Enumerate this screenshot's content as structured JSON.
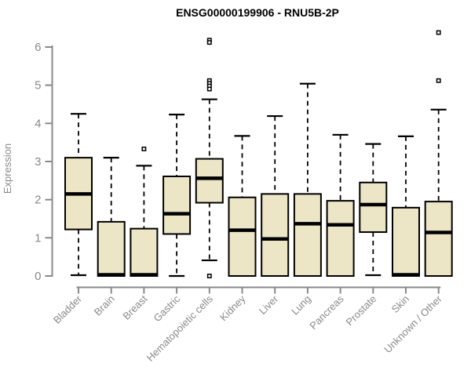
{
  "title": "ENSG00000199906 - RNU5B-2P",
  "chart_data": {
    "type": "boxplot",
    "title": "ENSG00000199906 - RNU5B-2P",
    "ylabel": "Expression",
    "ylim": [
      0,
      6
    ],
    "yticks": [
      0,
      1,
      2,
      3,
      4,
      5,
      6
    ],
    "grid": false,
    "legend": "none",
    "categories": [
      "Bladder",
      "Brain",
      "Breast",
      "Gastric",
      "Hematopoietic cells",
      "Kidney",
      "Liver",
      "Lung",
      "Pancreas",
      "Prostate",
      "Skin",
      "Unknown / Other"
    ],
    "series": [
      {
        "category": "Bladder",
        "whisker_low": 0.02,
        "q1": 1.22,
        "median": 2.15,
        "q3": 3.1,
        "whisker_high": 4.25,
        "outliers": []
      },
      {
        "category": "Brain",
        "whisker_low": 0.0,
        "q1": 0.0,
        "median": 0.03,
        "q3": 1.42,
        "whisker_high": 3.1,
        "outliers": []
      },
      {
        "category": "Breast",
        "whisker_low": 0.0,
        "q1": 0.0,
        "median": 0.03,
        "q3": 1.24,
        "whisker_high": 2.89,
        "outliers": [
          3.33
        ]
      },
      {
        "category": "Gastric",
        "whisker_low": 0.0,
        "q1": 1.1,
        "median": 1.63,
        "q3": 2.61,
        "whisker_high": 4.23,
        "outliers": []
      },
      {
        "category": "Hematopoietic cells",
        "whisker_low": 0.41,
        "q1": 1.92,
        "median": 2.56,
        "q3": 3.07,
        "whisker_high": 4.63,
        "outliers": [
          6.18,
          6.12,
          5.12,
          5.05,
          4.98,
          4.9,
          0.0
        ]
      },
      {
        "category": "Kidney",
        "whisker_low": 0.0,
        "q1": 0.0,
        "median": 1.2,
        "q3": 2.06,
        "whisker_high": 3.67,
        "outliers": []
      },
      {
        "category": "Liver",
        "whisker_low": 0.0,
        "q1": 0.0,
        "median": 0.97,
        "q3": 2.15,
        "whisker_high": 4.19,
        "outliers": []
      },
      {
        "category": "Lung",
        "whisker_low": 0.0,
        "q1": 0.0,
        "median": 1.37,
        "q3": 2.15,
        "whisker_high": 5.04,
        "outliers": []
      },
      {
        "category": "Pancreas",
        "whisker_low": 0.0,
        "q1": 0.0,
        "median": 1.34,
        "q3": 1.97,
        "whisker_high": 3.7,
        "outliers": []
      },
      {
        "category": "Prostate",
        "whisker_low": 0.02,
        "q1": 1.15,
        "median": 1.87,
        "q3": 2.45,
        "whisker_high": 3.46,
        "outliers": []
      },
      {
        "category": "Skin",
        "whisker_low": 0.0,
        "q1": 0.0,
        "median": 0.03,
        "q3": 1.79,
        "whisker_high": 3.66,
        "outliers": []
      },
      {
        "category": "Unknown / Other",
        "whisker_low": 0.0,
        "q1": 0.0,
        "median": 1.14,
        "q3": 1.95,
        "whisker_high": 4.36,
        "outliers": [
          6.38,
          5.12
        ]
      }
    ],
    "colors": {
      "box_fill": "#ECE6C6",
      "box_border": "#000000",
      "median": "#000000",
      "whisker": "#000000",
      "axis": "#8A8A8A",
      "tick_label": "#8A8A8A",
      "axis_label": "#8A8A8A",
      "title": "#000000",
      "background": "#FFFFFF"
    }
  }
}
